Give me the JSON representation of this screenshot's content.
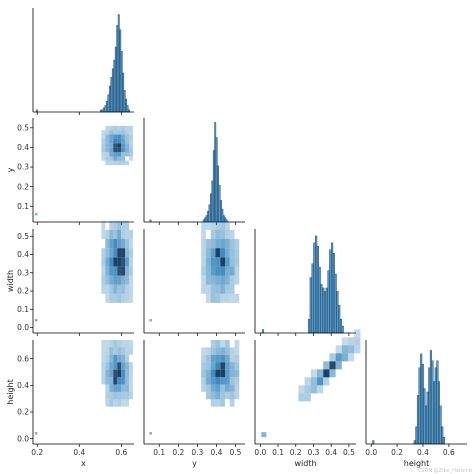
{
  "chart_data": {
    "type": "pairplot",
    "variables": [
      "x",
      "y",
      "width",
      "height"
    ],
    "corner": true,
    "color": "#1f77b4",
    "edge_color": "#1a3d5c",
    "axis_labels": {
      "x": "x",
      "y": "y",
      "width": "width",
      "height": "height"
    },
    "ranges": {
      "x": [
        0.18,
        0.66
      ],
      "y": [
        0.02,
        0.55
      ],
      "width": [
        -0.03,
        0.54
      ],
      "height": [
        -0.04,
        0.74
      ]
    },
    "ticks": {
      "x": [
        {
          "v": 0.2,
          "label": "0.2"
        },
        {
          "v": 0.4,
          "label": "0.4"
        },
        {
          "v": 0.6,
          "label": "0.6"
        }
      ],
      "y": [
        {
          "v": 0.1,
          "label": "0.1"
        },
        {
          "v": 0.2,
          "label": "0.2"
        },
        {
          "v": 0.3,
          "label": "0.3"
        },
        {
          "v": 0.4,
          "label": "0.4"
        },
        {
          "v": 0.5,
          "label": "0.5"
        }
      ],
      "width": [
        {
          "v": 0.0,
          "label": "0.0"
        },
        {
          "v": 0.1,
          "label": "0.1"
        },
        {
          "v": 0.2,
          "label": "0.2"
        },
        {
          "v": 0.3,
          "label": "0.3"
        },
        {
          "v": 0.4,
          "label": "0.4"
        },
        {
          "v": 0.5,
          "label": "0.5"
        }
      ],
      "height": [
        {
          "v": 0.0,
          "label": "0.0"
        },
        {
          "v": 0.2,
          "label": "0.2"
        },
        {
          "v": 0.4,
          "label": "0.4"
        },
        {
          "v": 0.6,
          "label": "0.6"
        }
      ]
    },
    "diagonal_histograms": [
      {
        "variable": "x",
        "bin_start": 0.5,
        "bin_width": 0.007,
        "counts": [
          1,
          1,
          2,
          3,
          5,
          8,
          12,
          16,
          20,
          24,
          30,
          40,
          45,
          38,
          28,
          18,
          10,
          6,
          3,
          1
        ],
        "outliers": [
          {
            "v": 0.195,
            "count": 1
          }
        ],
        "ymax": 48
      },
      {
        "variable": "y",
        "bin_start": 0.33,
        "bin_width": 0.0075,
        "counts": [
          1,
          2,
          3,
          5,
          8,
          13,
          19,
          33,
          46,
          39,
          26,
          17,
          10,
          6,
          3,
          2,
          1
        ],
        "outliers": [
          {
            "v": 0.05,
            "count": 1
          }
        ],
        "ymax": 48
      },
      {
        "variable": "width",
        "bin_start": 0.27,
        "bin_width": 0.01,
        "counts": [
          4,
          16,
          20,
          26,
          28,
          25,
          19,
          14,
          13,
          12,
          13,
          18,
          24,
          26,
          23,
          17,
          12,
          8,
          4,
          2
        ],
        "outliers": [
          {
            "v": 0.01,
            "count": 1
          }
        ],
        "ymax": 30
      },
      {
        "variable": "height",
        "bin_start": 0.33,
        "bin_width": 0.0125,
        "counts": [
          1,
          5,
          14,
          22,
          26,
          23,
          16,
          11,
          15,
          22,
          27,
          24,
          18,
          22,
          24,
          18,
          11,
          5,
          2
        ],
        "outliers": [
          {
            "v": 0.01,
            "count": 1
          }
        ],
        "ymax": 30
      }
    ],
    "pair_histograms": [
      {
        "row": "y",
        "col": "x",
        "center": [
          0.58,
          0.41
        ],
        "spread": [
          0.03,
          0.04
        ],
        "outliers": [
          [
            0.195,
            0.06
          ]
        ]
      },
      {
        "row": "width",
        "col": "x",
        "center": [
          0.58,
          0.36
        ],
        "spread": [
          0.03,
          0.09
        ],
        "outliers": [
          [
            0.195,
            0.04
          ]
        ]
      },
      {
        "row": "width",
        "col": "y",
        "center": [
          0.42,
          0.36
        ],
        "spread": [
          0.04,
          0.09
        ],
        "outliers": [
          [
            0.055,
            0.04
          ]
        ]
      },
      {
        "row": "height",
        "col": "x",
        "center": [
          0.58,
          0.49
        ],
        "spread": [
          0.03,
          0.1
        ],
        "outliers": [
          [
            0.195,
            0.04
          ]
        ]
      },
      {
        "row": "height",
        "col": "y",
        "center": [
          0.42,
          0.49
        ],
        "spread": [
          0.04,
          0.1
        ],
        "outliers": [
          [
            0.055,
            0.04
          ]
        ]
      },
      {
        "row": "height",
        "col": "width",
        "center": [
          0.39,
          0.52
        ],
        "spread": [
          0.07,
          0.12
        ],
        "correlated": true,
        "slope": 1.35,
        "outliers": [
          [
            0.02,
            0.03
          ]
        ]
      }
    ]
  },
  "watermark": "CSDN @Zibo_Harbinb"
}
